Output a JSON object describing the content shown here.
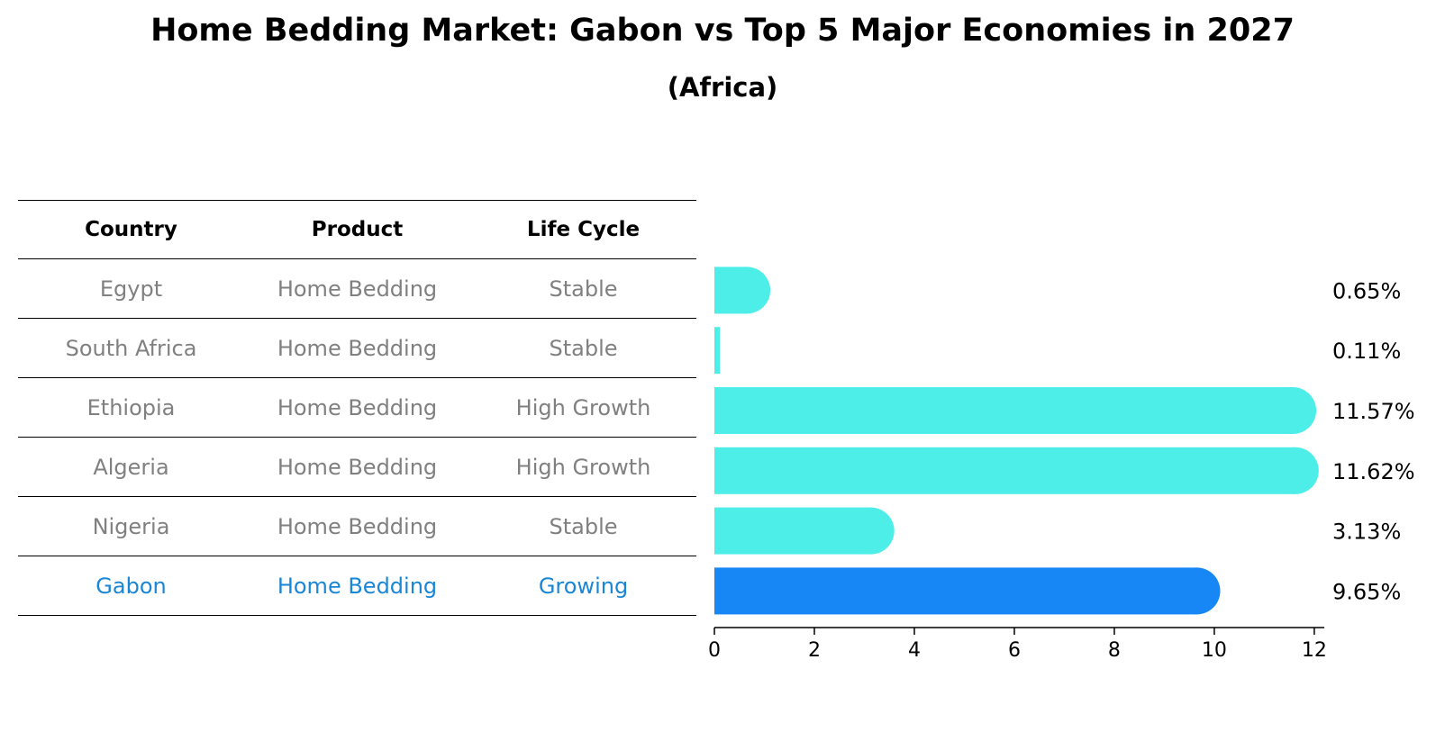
{
  "chart_data": {
    "type": "bar",
    "orientation": "horizontal",
    "title": "Home Bedding Market: Gabon vs Top 5 Major Economies in 2027",
    "subtitle": "(Africa)",
    "categories": [
      "Egypt",
      "South Africa",
      "Ethiopia",
      "Algeria",
      "Nigeria",
      "Gabon"
    ],
    "values": [
      0.65,
      0.11,
      11.57,
      11.62,
      3.13,
      9.65
    ],
    "value_labels": [
      "0.65%",
      "0.11%",
      "11.57%",
      "11.62%",
      "3.13%",
      "9.65%"
    ],
    "highlight": "Gabon",
    "xlim": [
      0,
      12.2
    ],
    "xticks": [
      0,
      2,
      4,
      6,
      8,
      10,
      12
    ],
    "colors": {
      "default": "#4dede8",
      "highlight": "#1787f5"
    }
  },
  "table": {
    "headers": [
      "Country",
      "Product",
      "Life Cycle"
    ],
    "rows": [
      [
        "Egypt",
        "Home Bedding",
        "Stable"
      ],
      [
        "South Africa",
        "Home Bedding",
        "Stable"
      ],
      [
        "Ethiopia",
        "Home Bedding",
        "High Growth"
      ],
      [
        "Algeria",
        "Home Bedding",
        "High Growth"
      ],
      [
        "Nigeria",
        "Home Bedding",
        "Stable"
      ],
      [
        "Gabon",
        "Home Bedding",
        "Growing"
      ]
    ]
  }
}
